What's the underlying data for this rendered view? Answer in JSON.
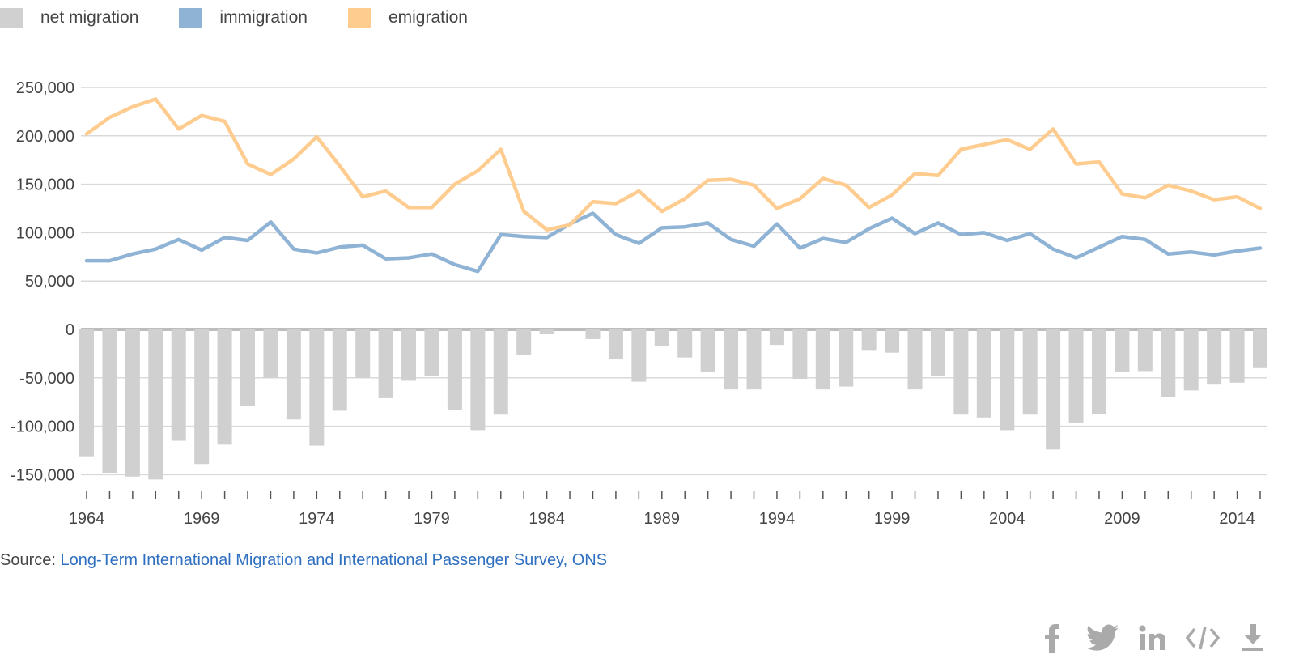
{
  "legend": [
    {
      "label": "net migration",
      "color": "#d0d0d0"
    },
    {
      "label": "immigration",
      "color": "#8fb3d5"
    },
    {
      "label": "emigration",
      "color": "#ffcc8f"
    }
  ],
  "chart_data": {
    "type": "bar+line",
    "x": [
      1964,
      1965,
      1966,
      1967,
      1968,
      1969,
      1970,
      1971,
      1972,
      1973,
      1974,
      1975,
      1976,
      1977,
      1978,
      1979,
      1980,
      1981,
      1982,
      1983,
      1984,
      1985,
      1986,
      1987,
      1988,
      1989,
      1990,
      1991,
      1992,
      1993,
      1994,
      1995,
      1996,
      1997,
      1998,
      1999,
      2000,
      2001,
      2002,
      2003,
      2004,
      2005,
      2006,
      2007,
      2008,
      2009,
      2010,
      2011,
      2012,
      2013,
      2014,
      2015
    ],
    "x_ticks": [
      "1964",
      "1969",
      "1974",
      "1979",
      "1984",
      "1989",
      "1994",
      "1999",
      "2004",
      "2009",
      "2014"
    ],
    "y_ticks": [
      "250,000",
      "200,000",
      "150,000",
      "100,000",
      "50,000",
      "0",
      "-50,000",
      "-100,000",
      "-150,000"
    ],
    "ylim": [
      -160000,
      260000
    ],
    "grid": true,
    "legend_position": "top-left",
    "series": [
      {
        "name": "net migration",
        "kind": "bar",
        "color": "#d0d0d0",
        "values": [
          -131000,
          -148000,
          -152000,
          -155000,
          -115000,
          -139000,
          -119000,
          -79000,
          -50000,
          -93000,
          -120000,
          -84000,
          -50000,
          -71000,
          -53000,
          -48000,
          -83000,
          -104000,
          -88000,
          -26000,
          -5000,
          0,
          -10000,
          -31000,
          -54000,
          -17000,
          -29000,
          -44000,
          -62000,
          -62000,
          -16000,
          -51000,
          -62000,
          -59000,
          -22000,
          -24000,
          -62000,
          -48000,
          -88000,
          -91000,
          -104000,
          -88000,
          -124000,
          -97000,
          -87000,
          -44000,
          -43000,
          -70000,
          -63000,
          -57000,
          -55000,
          -40000
        ]
      },
      {
        "name": "immigration",
        "kind": "line",
        "color": "#8fb3d5",
        "values": [
          71000,
          71000,
          78000,
          83000,
          93000,
          82000,
          95000,
          92000,
          111000,
          83000,
          79000,
          85000,
          87000,
          73000,
          74000,
          78000,
          67000,
          60000,
          98000,
          96000,
          95000,
          109000,
          120000,
          98000,
          89000,
          105000,
          106000,
          110000,
          93000,
          86000,
          109000,
          84000,
          94000,
          90000,
          104000,
          115000,
          99000,
          110000,
          98000,
          100000,
          92000,
          99000,
          83000,
          74000,
          85000,
          96000,
          93000,
          78000,
          80000,
          77000,
          81000,
          84000
        ]
      },
      {
        "name": "emigration",
        "kind": "line",
        "color": "#ffcc8f",
        "values": [
          202000,
          219000,
          230000,
          238000,
          207000,
          221000,
          215000,
          171000,
          160000,
          176000,
          199000,
          169000,
          137000,
          143000,
          126000,
          126000,
          150000,
          164000,
          186000,
          122000,
          103000,
          108000,
          132000,
          130000,
          143000,
          122000,
          135000,
          154000,
          155000,
          149000,
          125000,
          135000,
          156000,
          149000,
          126000,
          139000,
          161000,
          159000,
          186000,
          191000,
          196000,
          186000,
          207000,
          171000,
          173000,
          140000,
          136000,
          149000,
          143000,
          134000,
          137000,
          125000
        ]
      }
    ]
  },
  "source": {
    "prefix": "Source: ",
    "link_text": "Long-Term International Migration and International Passenger Survey, ONS"
  },
  "share": [
    {
      "icon": "facebook-icon"
    },
    {
      "icon": "twitter-icon"
    },
    {
      "icon": "linkedin-icon"
    },
    {
      "icon": "embed-code-icon"
    },
    {
      "icon": "download-icon"
    }
  ]
}
